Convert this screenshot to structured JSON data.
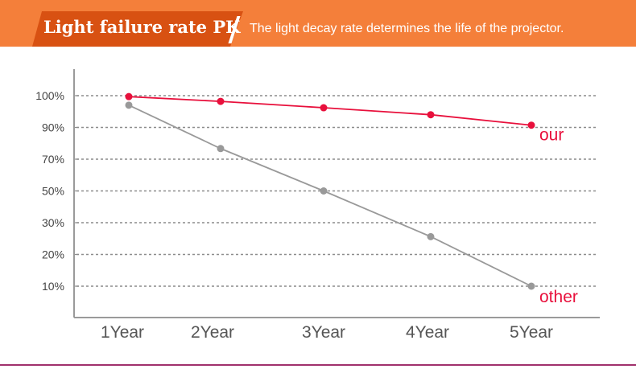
{
  "header": {
    "title": "Light failure rate PK",
    "subtitle": "The light decay rate determines the life of the projector."
  },
  "colors": {
    "banner": "#f47f3a",
    "banner_tab": "#d85112",
    "our_series": "#e8103c",
    "other_series": "#999999",
    "bottom_rule": "#a0306c"
  },
  "chart_data": {
    "type": "line",
    "title": "Light failure rate PK",
    "xlabel": "",
    "ylabel": "",
    "categories": [
      "1Year",
      "2Year",
      "3Year",
      "4Year",
      "5Year"
    ],
    "y_tick_labels": [
      "100%",
      "90%",
      "70%",
      "50%",
      "30%",
      "20%",
      "10%"
    ],
    "grid": true,
    "series": [
      {
        "name": "our",
        "color": "#e8103c",
        "values": [
          99.7,
          98.2,
          96.2,
          94.0,
          90.7
        ]
      },
      {
        "name": "other",
        "color": "#999999",
        "values": [
          97.0,
          76.7,
          50.0,
          25.6,
          10.0
        ]
      }
    ]
  }
}
